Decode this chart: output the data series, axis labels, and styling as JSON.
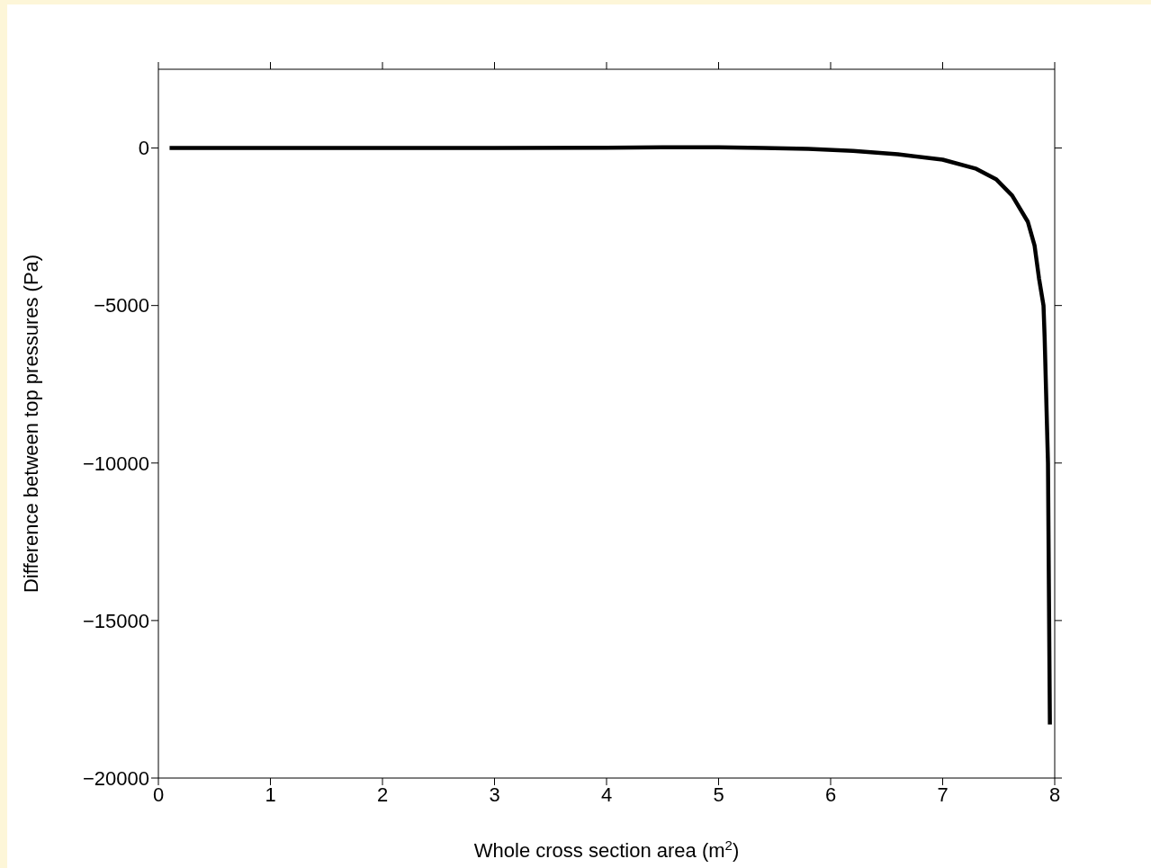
{
  "chart_data": {
    "type": "line",
    "xlabel": "Whole cross section area (m$^{2}$)",
    "ylabel": "Difference between top pressures (Pa)",
    "x": [
      0.1,
      1,
      2,
      3,
      4,
      4.5,
      5,
      5.4,
      5.8,
      6.2,
      6.6,
      7.0,
      7.3,
      7.48,
      7.62,
      7.76,
      7.82,
      7.86,
      7.9,
      7.91,
      7.94,
      7.957
    ],
    "series": [
      {
        "color": "#000000",
        "values": [
          0,
          0,
          0,
          0,
          10,
          20,
          20,
          0,
          -30,
          -90,
          -200,
          -370,
          -660,
          -1000,
          -1510,
          -2340,
          -3090,
          -4140,
          -5000,
          -6000,
          -10000,
          -18300
        ]
      }
    ],
    "xlim": [
      0,
      8
    ],
    "xticks": [
      0,
      1,
      2,
      3,
      4,
      5,
      6,
      7,
      8
    ],
    "ylim": [
      -20000,
      2500
    ],
    "yticks": [
      -20000,
      -15000,
      -10000,
      -5000,
      0
    ],
    "marker": "none",
    "line_style": "solid"
  }
}
